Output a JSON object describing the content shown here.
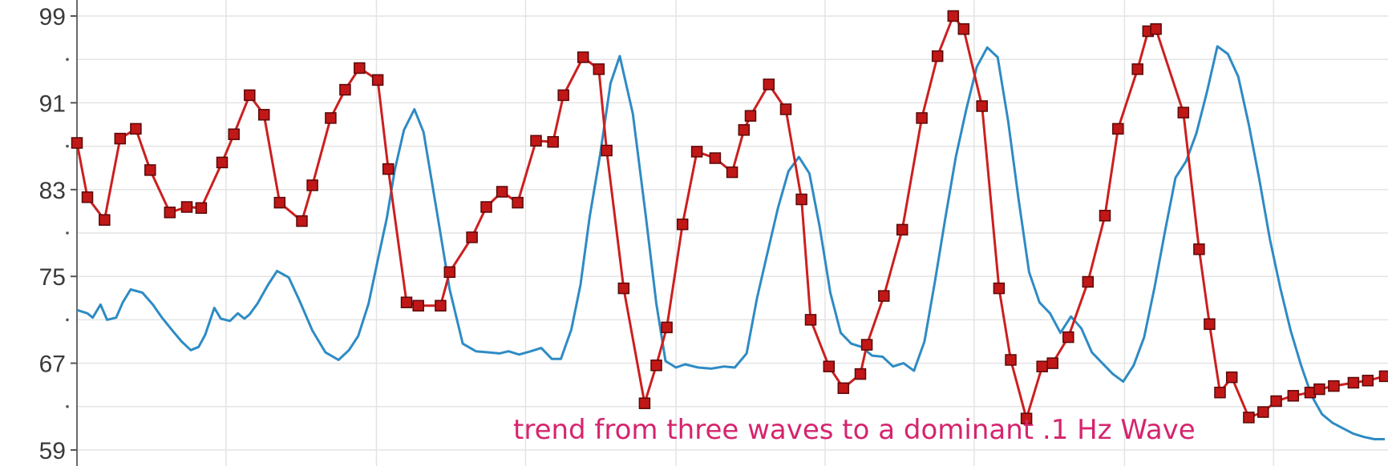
{
  "chart_data": {
    "type": "line",
    "xlim": [
      0,
      100
    ],
    "ylim": [
      59,
      99
    ],
    "y_ticks": [
      {
        "value": 99,
        "label": "99"
      },
      {
        "value": 91,
        "label": "91"
      },
      {
        "value": 83,
        "label": "83"
      },
      {
        "value": 75,
        "label": "75"
      },
      {
        "value": 67,
        "label": "67"
      },
      {
        "value": 59,
        "label": "59"
      }
    ],
    "y_minor_ticks": [
      95,
      87,
      79,
      71,
      63
    ],
    "x_gridlines": [
      11.4,
      22.9,
      34.3,
      45.8,
      57.2,
      68.6,
      80.1,
      91.5
    ],
    "grid": true,
    "annotation": "trend from three waves to a dominant .1 Hz Wave",
    "series": [
      {
        "color": "#cc1f1f",
        "markers": true,
        "x": [
          0.0,
          0.8,
          2.1,
          3.3,
          4.5,
          5.6,
          7.1,
          8.4,
          9.5,
          11.1,
          12.0,
          13.2,
          14.3,
          15.5,
          17.2,
          18.0,
          19.4,
          20.5,
          21.6,
          23.0,
          23.8,
          25.2,
          26.1,
          27.8,
          28.5,
          30.2,
          31.3,
          32.5,
          33.7,
          35.1,
          36.4,
          37.2,
          38.7,
          39.9,
          40.5,
          41.8,
          43.4,
          44.3,
          45.1,
          46.3,
          47.4,
          48.8,
          50.1,
          51.0,
          51.5,
          52.9,
          54.2,
          55.4,
          56.1,
          57.5,
          58.6,
          59.9,
          60.4,
          61.7,
          63.1,
          64.6,
          65.8,
          67.0,
          67.8,
          69.2,
          70.5,
          71.4,
          72.6,
          73.8,
          74.6,
          75.8,
          77.3,
          78.6,
          79.6,
          81.1,
          81.9,
          82.5,
          84.6,
          85.8,
          86.6,
          87.4,
          88.3,
          89.6,
          90.7,
          91.7,
          93.0,
          94.3,
          95.0,
          96.1,
          97.6,
          98.7,
          100.0
        ],
        "y": [
          87.3,
          82.3,
          80.2,
          87.7,
          88.6,
          84.8,
          80.9,
          81.4,
          81.3,
          85.5,
          88.1,
          91.7,
          89.9,
          81.8,
          80.1,
          83.4,
          89.6,
          92.2,
          94.2,
          93.1,
          84.9,
          72.6,
          72.3,
          72.3,
          75.4,
          78.6,
          81.4,
          82.8,
          81.8,
          87.5,
          87.4,
          91.7,
          95.2,
          94.1,
          86.6,
          73.9,
          63.3,
          66.8,
          70.3,
          79.8,
          86.5,
          85.9,
          84.6,
          88.5,
          89.8,
          92.7,
          90.4,
          82.1,
          71.0,
          66.7,
          64.7,
          66.0,
          68.7,
          73.2,
          79.3,
          89.6,
          95.3,
          99.0,
          97.8,
          90.7,
          73.9,
          67.3,
          61.9,
          66.7,
          67.0,
          69.4,
          74.5,
          80.6,
          88.6,
          94.1,
          97.6,
          97.8,
          90.1,
          77.5,
          70.6,
          64.3,
          65.7,
          62.0,
          62.5,
          63.5,
          64.0,
          64.3,
          64.6,
          64.9,
          65.2,
          65.4,
          65.8
        ]
      },
      {
        "color": "#2e8bc4",
        "markers": false,
        "x": [
          0.0,
          0.8,
          1.2,
          1.8,
          2.3,
          3.0,
          3.5,
          4.1,
          5.0,
          5.8,
          6.5,
          7.3,
          8.0,
          8.7,
          9.3,
          9.8,
          10.5,
          11.0,
          11.7,
          12.3,
          12.8,
          13.2,
          13.8,
          14.6,
          15.3,
          16.2,
          17.0,
          18.0,
          19.0,
          20.0,
          20.8,
          21.5,
          22.3,
          23.0,
          23.7,
          24.3,
          25.0,
          25.8,
          26.5,
          27.5,
          28.5,
          29.5,
          30.5,
          31.5,
          32.3,
          33.0,
          33.8,
          34.7,
          35.5,
          36.3,
          37.0,
          37.8,
          38.5,
          39.2,
          40.0,
          40.8,
          41.5,
          42.5,
          43.5,
          44.3,
          45.0,
          45.8,
          46.5,
          47.5,
          48.5,
          49.5,
          50.3,
          51.2,
          52.0,
          52.8,
          53.6,
          54.4,
          55.2,
          56.0,
          56.8,
          57.6,
          58.4,
          59.2,
          60.0,
          60.8,
          61.6,
          62.4,
          63.2,
          64.0,
          64.8,
          65.6,
          66.4,
          67.2,
          68.0,
          68.8,
          69.6,
          70.4,
          71.2,
          72.0,
          72.8,
          73.6,
          74.4,
          75.2,
          76.0,
          76.8,
          77.6,
          78.4,
          79.2,
          80.0,
          80.8,
          81.6,
          82.4,
          83.2,
          84.0,
          84.8,
          85.6,
          86.4,
          87.2,
          88.0,
          88.8,
          89.6,
          90.4,
          91.2,
          92.0,
          92.8,
          93.6,
          94.4,
          95.2,
          96.0,
          96.8,
          97.6,
          98.4,
          99.2,
          100.0
        ],
        "y": [
          71.9,
          71.6,
          71.2,
          72.4,
          71.0,
          71.2,
          72.6,
          73.8,
          73.5,
          72.4,
          71.2,
          70.0,
          69.0,
          68.2,
          68.5,
          69.6,
          72.1,
          71.1,
          70.9,
          71.6,
          71.1,
          71.5,
          72.5,
          74.2,
          75.5,
          74.9,
          72.8,
          70.0,
          68.0,
          67.3,
          68.2,
          69.5,
          72.5,
          76.5,
          80.4,
          84.8,
          88.5,
          90.4,
          88.3,
          81.1,
          73.8,
          68.8,
          68.1,
          68.0,
          67.9,
          68.1,
          67.8,
          68.1,
          68.4,
          67.4,
          67.4,
          70.1,
          74.2,
          80.5,
          86.2,
          92.8,
          95.3,
          90.0,
          80.5,
          72.5,
          67.2,
          66.6,
          66.9,
          66.6,
          66.5,
          66.7,
          66.6,
          67.9,
          73.0,
          77.2,
          81.3,
          84.7,
          86.0,
          84.5,
          79.5,
          73.5,
          69.8,
          68.8,
          68.5,
          67.7,
          67.6,
          66.7,
          67.0,
          66.3,
          69.0,
          74.5,
          80.4,
          86.0,
          90.4,
          94.3,
          96.1,
          95.2,
          89.3,
          82.1,
          75.4,
          72.6,
          71.6,
          69.8,
          71.3,
          70.2,
          68.0,
          67.0,
          66.0,
          65.3,
          66.8,
          69.4,
          74.0,
          79.2,
          84.1,
          85.6,
          88.2,
          92.0,
          96.2,
          95.5,
          93.4,
          89.0,
          84.0,
          78.5,
          74.0,
          70.0,
          66.8,
          64.0,
          62.3,
          61.5,
          61.0,
          60.5,
          60.2,
          60.0,
          60.0
        ]
      }
    ]
  }
}
